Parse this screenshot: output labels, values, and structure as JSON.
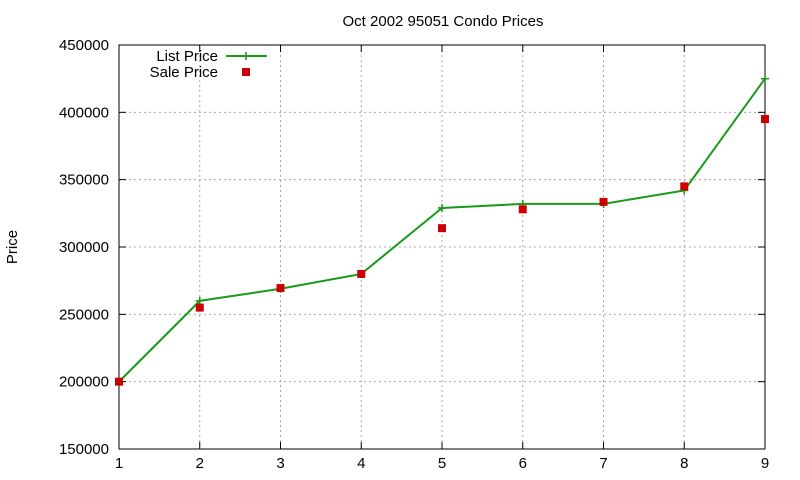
{
  "chart_data": {
    "type": "line",
    "title": "Oct 2002 95051 Condo Prices",
    "xlabel": "",
    "ylabel": "Price",
    "xlim": [
      1,
      9
    ],
    "ylim": [
      150000,
      450000
    ],
    "x_ticks": [
      "1",
      "2",
      "3",
      "4",
      "5",
      "6",
      "7",
      "8",
      "9"
    ],
    "y_ticks": [
      "150000",
      "200000",
      "250000",
      "300000",
      "350000",
      "400000",
      "450000"
    ],
    "grid": true,
    "legend_position": "top-left",
    "x": [
      1,
      2,
      3,
      4,
      5,
      6,
      7,
      8,
      9
    ],
    "series": [
      {
        "name": "List Price",
        "style": "line-plus",
        "color": "#1a9a1a",
        "values": [
          200000,
          260000,
          269000,
          280000,
          329000,
          332000,
          332000,
          342000,
          425000
        ]
      },
      {
        "name": "Sale Price",
        "style": "square",
        "color": "#cc0000",
        "values": [
          200000,
          255000,
          269500,
          280000,
          314000,
          328000,
          333500,
          345000,
          395000
        ]
      }
    ]
  }
}
